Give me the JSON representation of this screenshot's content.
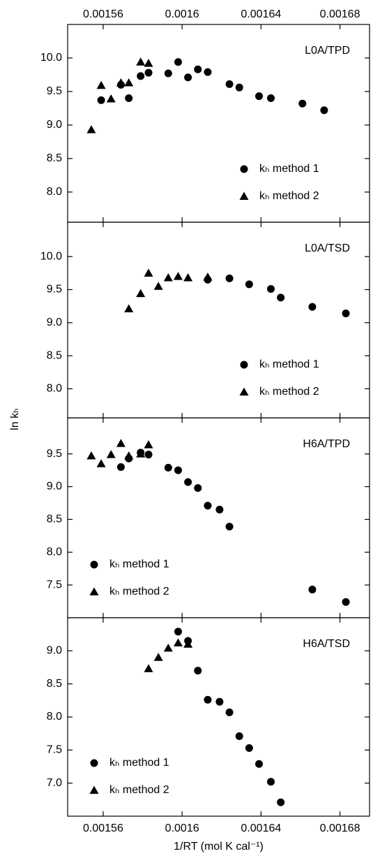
{
  "chart_data": [
    {
      "type": "scatter",
      "annotation": "L0A/TPD",
      "xlim": [
        0.001542,
        0.001695
      ],
      "xticks": [
        0.00156,
        0.0016,
        0.00164,
        0.00168
      ],
      "xtick_labels": "top",
      "ylim": [
        7.55,
        10.5
      ],
      "yticks": [
        8.0,
        8.5,
        9.0,
        9.5,
        10.0
      ],
      "ytick_labels": [
        "8.0",
        "8.5",
        "9.0",
        "9.5",
        "10.0"
      ],
      "legend": "lower right",
      "series": [
        {
          "name": "kₕ method 1",
          "marker": "circle",
          "color": "#000000",
          "x": [
            0.001559,
            0.001569,
            0.001573,
            0.001579,
            0.001583,
            0.001593,
            0.001598,
            0.001603,
            0.001608,
            0.001613,
            0.001624,
            0.001629,
            0.001639,
            0.001645,
            0.001661,
            0.001672
          ],
          "values": [
            9.37,
            9.6,
            9.4,
            9.73,
            9.78,
            9.77,
            9.94,
            9.71,
            9.83,
            9.79,
            9.61,
            9.56,
            9.43,
            9.4,
            9.32,
            9.22
          ]
        },
        {
          "name": "kₕ method 2",
          "marker": "triangle",
          "color": "#000000",
          "x": [
            0.001554,
            0.001559,
            0.001564,
            0.001569,
            0.001573,
            0.001579,
            0.001583
          ],
          "values": [
            8.93,
            9.59,
            9.39,
            9.63,
            9.63,
            9.94,
            9.92
          ]
        }
      ]
    },
    {
      "type": "scatter",
      "annotation": "L0A/TSD",
      "ylabel": "ln kₕ",
      "xlim": [
        0.001542,
        0.001695
      ],
      "xticks": [
        0.00156,
        0.0016,
        0.00164,
        0.00168
      ],
      "ylim": [
        7.56,
        10.52
      ],
      "yticks": [
        8.0,
        8.5,
        9.0,
        9.5,
        10.0
      ],
      "ytick_labels": [
        "8.0",
        "8.5",
        "9.0",
        "9.5",
        "10.0"
      ],
      "legend": "lower right",
      "series": [
        {
          "name": "kₕ method 1",
          "marker": "circle",
          "color": "#000000",
          "x": [
            0.001613,
            0.001624,
            0.001634,
            0.001645,
            0.00165,
            0.001666,
            0.001683
          ],
          "values": [
            9.65,
            9.67,
            9.58,
            9.51,
            9.38,
            9.24,
            9.14
          ]
        },
        {
          "name": "kₕ method 2",
          "marker": "triangle",
          "color": "#000000",
          "x": [
            0.001573,
            0.001579,
            0.001583,
            0.001588,
            0.001593,
            0.001598,
            0.001603,
            0.001613
          ],
          "values": [
            9.21,
            9.44,
            9.75,
            9.55,
            9.68,
            9.7,
            9.68,
            9.69
          ]
        }
      ]
    },
    {
      "type": "scatter",
      "annotation": "H6A/TPD",
      "xlim": [
        0.001542,
        0.001695
      ],
      "xticks": [
        0.00156,
        0.0016,
        0.00164,
        0.00168
      ],
      "ylim": [
        7.0,
        10.05
      ],
      "yticks": [
        7.5,
        8.0,
        8.5,
        9.0,
        9.5
      ],
      "ytick_labels": [
        "7.5",
        "8.0",
        "8.5",
        "9.0",
        "9.5"
      ],
      "legend": "lower left",
      "series": [
        {
          "name": "kₕ method 1",
          "marker": "circle",
          "color": "#000000",
          "x": [
            0.001569,
            0.001573,
            0.001579,
            0.001583,
            0.001593,
            0.001598,
            0.001603,
            0.001608,
            0.001613,
            0.001619,
            0.001624,
            0.001666,
            0.001683
          ],
          "values": [
            9.3,
            9.43,
            9.52,
            9.49,
            9.29,
            9.25,
            9.07,
            8.98,
            8.71,
            8.65,
            8.39,
            7.43,
            7.24
          ]
        },
        {
          "name": "kₕ method 2",
          "marker": "triangle",
          "color": "#000000",
          "x": [
            0.001554,
            0.001559,
            0.001564,
            0.001569,
            0.001573,
            0.001579,
            0.001583
          ],
          "values": [
            9.47,
            9.35,
            9.49,
            9.66,
            9.47,
            9.5,
            9.64
          ]
        }
      ]
    },
    {
      "type": "scatter",
      "annotation": "H6A/TSD",
      "xlabel": "1/RT (mol K cal⁻¹)",
      "xlim": [
        0.001542,
        0.001695
      ],
      "xticks": [
        0.00156,
        0.0016,
        0.00164,
        0.00168
      ],
      "xtick_labels": "bottom",
      "ylim": [
        6.5,
        9.5
      ],
      "yticks": [
        7.0,
        7.5,
        8.0,
        8.5,
        9.0
      ],
      "ytick_labels": [
        "7.0",
        "7.5",
        "8.0",
        "8.5",
        "9.0"
      ],
      "legend": "lower left",
      "series": [
        {
          "name": "kₕ method 1",
          "marker": "circle",
          "color": "#000000",
          "x": [
            0.001598,
            0.001603,
            0.001608,
            0.001613,
            0.001619,
            0.001624,
            0.001629,
            0.001634,
            0.001639,
            0.001645,
            0.00165
          ],
          "values": [
            9.29,
            9.15,
            8.7,
            8.26,
            8.23,
            8.07,
            7.71,
            7.53,
            7.29,
            7.02,
            6.71
          ]
        },
        {
          "name": "kₕ method 2",
          "marker": "triangle",
          "color": "#000000",
          "x": [
            0.001583,
            0.001588,
            0.001593,
            0.001598,
            0.001603
          ],
          "values": [
            8.73,
            8.9,
            9.04,
            9.12,
            9.1
          ]
        }
      ]
    }
  ]
}
